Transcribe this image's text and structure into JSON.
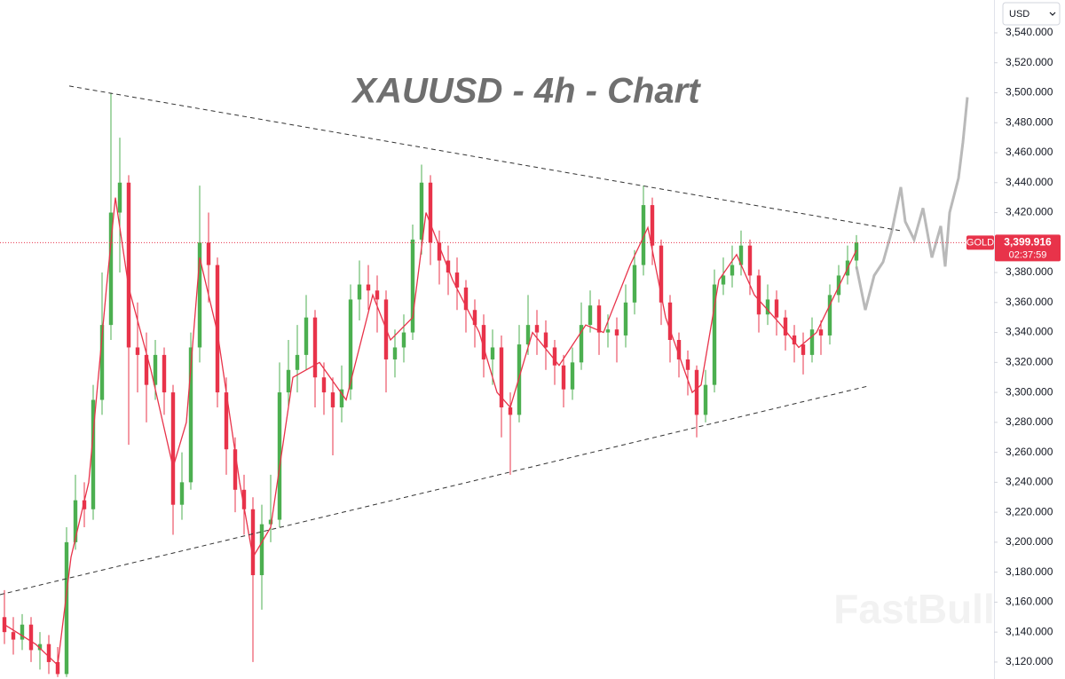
{
  "chart_data": {
    "type": "candlestick",
    "title": "XAUUSD - 4h - Chart",
    "currency": "USD",
    "watermark": "FastBull",
    "xlim": [
      0,
      112
    ],
    "ylim": [
      3108.7,
      3561.9
    ],
    "yticks": [
      {
        "value": 3120,
        "label": "3,120.000"
      },
      {
        "value": 3140,
        "label": "3,140.000"
      },
      {
        "value": 3160,
        "label": "3,160.000"
      },
      {
        "value": 3180,
        "label": "3,180.000"
      },
      {
        "value": 3200,
        "label": "3,200.000"
      },
      {
        "value": 3220,
        "label": "3,220.000"
      },
      {
        "value": 3240,
        "label": "3,240.000"
      },
      {
        "value": 3260,
        "label": "3,260.000"
      },
      {
        "value": 3280,
        "label": "3,280.000"
      },
      {
        "value": 3300,
        "label": "3,300.000"
      },
      {
        "value": 3320,
        "label": "3,320.000"
      },
      {
        "value": 3340,
        "label": "3,340.000"
      },
      {
        "value": 3360,
        "label": "3,360.000"
      },
      {
        "value": 3380,
        "label": "3,380.000"
      },
      {
        "value": 3400,
        "label": "3,400.000"
      },
      {
        "value": 3420,
        "label": "3,420.000"
      },
      {
        "value": 3440,
        "label": "3,440.000"
      },
      {
        "value": 3460,
        "label": "3,460.000"
      },
      {
        "value": 3480,
        "label": "3,480.000"
      },
      {
        "value": 3500,
        "label": "3,500.000"
      },
      {
        "value": 3520,
        "label": "3,520.000"
      },
      {
        "value": 3540,
        "label": "3,540.000"
      }
    ],
    "up_color": "#4caf50",
    "down_color": "#e8334a",
    "open": [
      3150,
      3140,
      3135,
      3145,
      3128,
      3132,
      3120,
      3112,
      3200,
      3228,
      3222,
      3295,
      3345,
      3420,
      3440,
      3330,
      3325,
      3305,
      3325,
      3300,
      3225,
      3240,
      3330,
      3400,
      3385,
      3300,
      3262,
      3235,
      3222,
      3178,
      3212,
      3215,
      3300,
      3315,
      3325,
      3350,
      3310,
      3300,
      3290,
      3302,
      3362,
      3372,
      3368,
      3362,
      3322,
      3330,
      3340,
      3402,
      3440,
      3400,
      3388,
      3380,
      3370,
      3355,
      3345,
      3322,
      3330,
      3290,
      3285,
      3332,
      3345,
      3340,
      3330,
      3318,
      3302,
      3320,
      3345,
      3358,
      3340,
      3342,
      3338,
      3360,
      3385,
      3425,
      3398,
      3360,
      3335,
      3322,
      3315,
      3285,
      3305,
      3372,
      3378,
      3385,
      3398,
      3378,
      3352,
      3362,
      3350,
      3338,
      3332,
      3325,
      3342,
      3338,
      3365,
      3378,
      3388
    ],
    "high": [
      3168,
      3150,
      3152,
      3150,
      3140,
      3138,
      3130,
      3210,
      3245,
      3240,
      3305,
      3380,
      3500,
      3470,
      3445,
      3360,
      3340,
      3335,
      3330,
      3305,
      3260,
      3340,
      3438,
      3420,
      3390,
      3310,
      3270,
      3245,
      3230,
      3225,
      3245,
      3320,
      3335,
      3345,
      3365,
      3355,
      3320,
      3310,
      3318,
      3372,
      3388,
      3385,
      3378,
      3368,
      3342,
      3352,
      3412,
      3452,
      3445,
      3408,
      3398,
      3390,
      3375,
      3362,
      3352,
      3342,
      3338,
      3300,
      3345,
      3365,
      3355,
      3348,
      3335,
      3325,
      3330,
      3360,
      3368,
      3362,
      3352,
      3350,
      3372,
      3395,
      3438,
      3430,
      3402,
      3365,
      3340,
      3328,
      3318,
      3315,
      3382,
      3390,
      3398,
      3408,
      3402,
      3382,
      3372,
      3368,
      3355,
      3345,
      3340,
      3350,
      3348,
      3372,
      3385,
      3398,
      3405
    ],
    "low": [
      3132,
      3125,
      3128,
      3120,
      3115,
      3112,
      3110,
      3110,
      3195,
      3210,
      3215,
      3285,
      3335,
      3380,
      3265,
      3300,
      3280,
      3295,
      3285,
      3205,
      3215,
      3235,
      3320,
      3360,
      3290,
      3245,
      3220,
      3205,
      3120,
      3155,
      3200,
      3210,
      3290,
      3300,
      3315,
      3290,
      3285,
      3258,
      3280,
      3295,
      3348,
      3355,
      3340,
      3300,
      3310,
      3320,
      3335,
      3392,
      3385,
      3372,
      3365,
      3355,
      3340,
      3330,
      3310,
      3305,
      3270,
      3245,
      3280,
      3325,
      3325,
      3315,
      3305,
      3290,
      3295,
      3315,
      3340,
      3325,
      3330,
      3320,
      3330,
      3352,
      3378,
      3385,
      3345,
      3320,
      3310,
      3298,
      3270,
      3280,
      3300,
      3365,
      3370,
      3378,
      3365,
      3340,
      3345,
      3338,
      3328,
      3320,
      3312,
      3320,
      3325,
      3332,
      3360,
      3372,
      3382
    ],
    "close": [
      3140,
      3135,
      3145,
      3128,
      3132,
      3120,
      3112,
      3200,
      3228,
      3222,
      3295,
      3345,
      3420,
      3440,
      3330,
      3325,
      3305,
      3325,
      3300,
      3225,
      3240,
      3330,
      3400,
      3385,
      3300,
      3262,
      3235,
      3222,
      3178,
      3212,
      3215,
      3300,
      3315,
      3325,
      3350,
      3310,
      3300,
      3290,
      3302,
      3362,
      3372,
      3368,
      3362,
      3322,
      3330,
      3340,
      3402,
      3440,
      3400,
      3388,
      3380,
      3370,
      3355,
      3345,
      3322,
      3330,
      3290,
      3285,
      3332,
      3345,
      3340,
      3330,
      3318,
      3302,
      3320,
      3345,
      3358,
      3340,
      3342,
      3338,
      3360,
      3385,
      3425,
      3398,
      3360,
      3335,
      3322,
      3315,
      3285,
      3305,
      3372,
      3378,
      3385,
      3398,
      3378,
      3352,
      3362,
      3350,
      3338,
      3332,
      3325,
      3342,
      3338,
      3365,
      3378,
      3388,
      3400
    ],
    "moving_average": {
      "color": "#e8334a",
      "x": [
        0.5,
        4,
        6.5,
        8,
        10,
        12,
        13,
        14.5,
        17,
        19.5,
        21,
        22.5,
        24.5,
        27,
        28.5,
        30.5,
        33,
        36,
        39,
        42,
        44,
        46.5,
        48,
        51,
        54,
        56,
        57.5,
        60,
        63,
        66,
        68,
        71,
        73,
        75,
        78,
        79,
        81,
        83,
        85,
        88,
        90,
        92,
        96.5
      ],
      "values": [
        3145,
        3132,
        3118,
        3190,
        3240,
        3370,
        3430,
        3370,
        3315,
        3250,
        3280,
        3390,
        3340,
        3240,
        3190,
        3210,
        3310,
        3320,
        3295,
        3365,
        3335,
        3350,
        3420,
        3375,
        3340,
        3300,
        3290,
        3340,
        3318,
        3345,
        3340,
        3385,
        3410,
        3350,
        3300,
        3305,
        3375,
        3392,
        3365,
        3345,
        3330,
        3340,
        3395
      ]
    },
    "projection": {
      "color": "#a8a8a8",
      "x": [
        96.5,
        97.5,
        98.5,
        99.5,
        100.5,
        101.5,
        102,
        103,
        104,
        105,
        106,
        106.5,
        107,
        108,
        108.5,
        109
      ],
      "values": [
        3384,
        3355,
        3378,
        3387,
        3408,
        3437,
        3414,
        3402,
        3423,
        3390,
        3411,
        3384,
        3420,
        3443,
        3467,
        3497
      ]
    },
    "trendline_color": "#333333",
    "trendlines": [
      {
        "x": [
          7.8,
          101.5
        ],
        "values": [
          3504.5,
          3407.9
        ]
      },
      {
        "x": [
          0,
          97.8
        ],
        "values": [
          3165,
          3304.2
        ]
      }
    ],
    "price_line": {
      "name": "GOLD",
      "price": {
        "value": 3399.916,
        "label": "3,399.916"
      },
      "countdown": "02:37:59",
      "color": "#e8334a"
    }
  }
}
